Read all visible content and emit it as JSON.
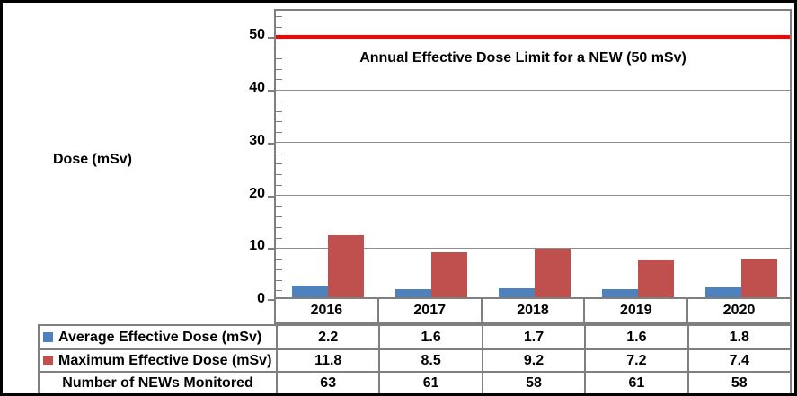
{
  "chart_data": {
    "type": "bar",
    "title": "Annual Effective Dose Limit for a NEW (50 mSv)",
    "ylabel": "Dose (mSv)",
    "categories": [
      "2016",
      "2017",
      "2018",
      "2019",
      "2020"
    ],
    "series": [
      {
        "name": "Average Effective Dose (mSv)",
        "color": "#4F81BD",
        "values": [
          2.2,
          1.6,
          1.7,
          1.6,
          1.8
        ]
      },
      {
        "name": "Maximum Effective Dose (mSv)",
        "color": "#C0504D",
        "values": [
          11.8,
          8.5,
          9.2,
          7.2,
          7.4
        ]
      }
    ],
    "extra_rows": [
      {
        "name": "Number of NEWs Monitored",
        "values": [
          63,
          61,
          58,
          61,
          58
        ]
      }
    ],
    "limit_line": {
      "value": 50,
      "color": "#FF0000"
    },
    "yticks": [
      0,
      10,
      20,
      30,
      40,
      50
    ],
    "ylim": [
      0,
      55
    ],
    "minor_tick_step": 2,
    "grid": true,
    "legend_position": "table-left"
  }
}
